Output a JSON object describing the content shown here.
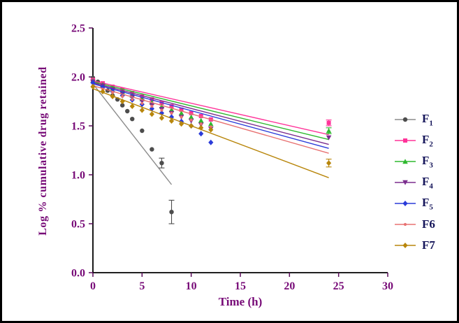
{
  "chart_data": {
    "type": "scatter",
    "title": "",
    "xlabel": "Time (h)",
    "ylabel": "Log % cumulative drug retained",
    "xlim": [
      0,
      30
    ],
    "ylim": [
      0,
      2.5
    ],
    "xticks": [
      0,
      5,
      10,
      15,
      20,
      25,
      30
    ],
    "xtick_labels": [
      "0",
      "5",
      "10",
      "15",
      "20",
      "25",
      "30"
    ],
    "yticks": [
      0,
      0.5,
      1.0,
      1.5,
      2.0,
      2.5
    ],
    "ytick_labels": [
      "0.0",
      "0.5",
      "1.0",
      "1.5",
      "2.0",
      "2.5"
    ],
    "grid": false,
    "legend_position": "right",
    "colors": {
      "axis_text": "#770a77",
      "axis_line": "#000000",
      "tick": "#5a0a5a",
      "legend_text": "#15155a"
    },
    "series": [
      {
        "name": "F1",
        "label": "F1",
        "subscript": true,
        "color": "#8c8c8c",
        "marker_color": "#4d4d4d",
        "marker": "circle",
        "points": [
          [
            0,
            1.99
          ],
          [
            0.5,
            1.95
          ],
          [
            1,
            1.9
          ],
          [
            1.5,
            1.86
          ],
          [
            2,
            1.81
          ],
          [
            2.5,
            1.77
          ],
          [
            3,
            1.71
          ],
          [
            3.5,
            1.65
          ],
          [
            4,
            1.57
          ],
          [
            5,
            1.45
          ],
          [
            6,
            1.26
          ],
          [
            7,
            1.12
          ],
          [
            8,
            0.62
          ]
        ],
        "fit": [
          [
            0,
            1.93
          ],
          [
            8,
            0.9
          ]
        ],
        "error_bars": [
          {
            "x": 7,
            "y": 1.12,
            "err": 0.05
          },
          {
            "x": 8,
            "y": 0.62,
            "err": 0.12
          }
        ]
      },
      {
        "name": "F2",
        "label": "F2",
        "subscript": true,
        "color": "#ff3399",
        "marker_color": "#ff3399",
        "marker": "square",
        "points": [
          [
            0,
            1.97
          ],
          [
            1,
            1.935
          ],
          [
            2,
            1.9
          ],
          [
            3,
            1.87
          ],
          [
            4,
            1.835
          ],
          [
            5,
            1.8
          ],
          [
            6,
            1.77
          ],
          [
            7,
            1.735
          ],
          [
            8,
            1.7
          ],
          [
            9,
            1.665
          ],
          [
            10,
            1.63
          ],
          [
            11,
            1.6
          ],
          [
            12,
            1.565
          ],
          [
            24,
            1.53
          ]
        ],
        "fit": [
          [
            0,
            1.96
          ],
          [
            24,
            1.41
          ]
        ],
        "error_bars": [
          {
            "x": 24,
            "y": 1.53,
            "err": 0.03
          }
        ]
      },
      {
        "name": "F3",
        "label": "F3",
        "subscript": true,
        "color": "#2eb82e",
        "marker_color": "#2eb82e",
        "marker": "triangle",
        "points": [
          [
            0,
            1.96
          ],
          [
            1,
            1.92
          ],
          [
            2,
            1.885
          ],
          [
            3,
            1.85
          ],
          [
            4,
            1.81
          ],
          [
            5,
            1.775
          ],
          [
            6,
            1.74
          ],
          [
            7,
            1.7
          ],
          [
            8,
            1.665
          ],
          [
            9,
            1.63
          ],
          [
            10,
            1.59
          ],
          [
            11,
            1.555
          ],
          [
            12,
            1.52
          ],
          [
            24,
            1.45
          ]
        ],
        "fit": [
          [
            0,
            1.95
          ],
          [
            24,
            1.36
          ]
        ],
        "error_bars": [
          {
            "x": 24,
            "y": 1.45,
            "err": 0.03
          }
        ]
      },
      {
        "name": "F4",
        "label": "F4",
        "subscript": true,
        "color": "#7b2d8e",
        "marker_color": "#7b2d8e",
        "marker": "triangle-down",
        "points": [
          [
            0,
            1.95
          ],
          [
            1,
            1.91
          ],
          [
            2,
            1.87
          ],
          [
            3,
            1.83
          ],
          [
            4,
            1.79
          ],
          [
            5,
            1.75
          ],
          [
            6,
            1.71
          ],
          [
            7,
            1.67
          ],
          [
            8,
            1.63
          ],
          [
            9,
            1.59
          ],
          [
            10,
            1.55
          ],
          [
            11,
            1.51
          ],
          [
            12,
            1.47
          ],
          [
            24,
            1.38
          ]
        ],
        "fit": [
          [
            0,
            1.94
          ],
          [
            24,
            1.31
          ]
        ],
        "error_bars": []
      },
      {
        "name": "F5",
        "label": "F5",
        "subscript": true,
        "color": "#2b3cd9",
        "marker_color": "#2b3cd9",
        "marker": "diamond",
        "points": [
          [
            0,
            1.94
          ],
          [
            1,
            1.895
          ],
          [
            2,
            1.85
          ],
          [
            3,
            1.81
          ],
          [
            4,
            1.765
          ],
          [
            5,
            1.72
          ],
          [
            6,
            1.675
          ],
          [
            7,
            1.63
          ],
          [
            8,
            1.59
          ],
          [
            9,
            1.545
          ],
          [
            10,
            1.5
          ],
          [
            11,
            1.42
          ],
          [
            12,
            1.33
          ]
        ],
        "fit": [
          [
            0,
            1.93
          ],
          [
            24,
            1.27
          ]
        ],
        "error_bars": []
      },
      {
        "name": "F6",
        "label": "F6",
        "subscript": false,
        "color": "#e87272",
        "marker_color": "#e87272",
        "marker": "dot",
        "points": [
          [
            0,
            1.91
          ],
          [
            1,
            1.875
          ],
          [
            2,
            1.84
          ],
          [
            3,
            1.8
          ],
          [
            4,
            1.77
          ],
          [
            5,
            1.73
          ],
          [
            6,
            1.7
          ],
          [
            7,
            1.66
          ],
          [
            8,
            1.63
          ],
          [
            9,
            1.59
          ],
          [
            10,
            1.56
          ],
          [
            11,
            1.52
          ],
          [
            12,
            1.49
          ]
        ],
        "fit": [
          [
            0,
            1.91
          ],
          [
            24,
            1.22
          ]
        ],
        "error_bars": []
      },
      {
        "name": "F7",
        "label": "F7",
        "subscript": false,
        "color": "#b8860b",
        "marker_color": "#b8860b",
        "marker": "diamond",
        "points": [
          [
            0,
            1.9
          ],
          [
            1,
            1.85
          ],
          [
            2,
            1.8
          ],
          [
            3,
            1.75
          ],
          [
            4,
            1.7
          ],
          [
            5,
            1.66
          ],
          [
            6,
            1.62
          ],
          [
            7,
            1.58
          ],
          [
            8,
            1.55
          ],
          [
            9,
            1.52
          ],
          [
            10,
            1.5
          ],
          [
            11,
            1.48
          ],
          [
            12,
            1.46
          ],
          [
            24,
            1.12
          ]
        ],
        "fit": [
          [
            0,
            1.88
          ],
          [
            24,
            0.97
          ]
        ],
        "error_bars": [
          {
            "x": 24,
            "y": 1.12,
            "err": 0.04
          }
        ]
      }
    ]
  }
}
